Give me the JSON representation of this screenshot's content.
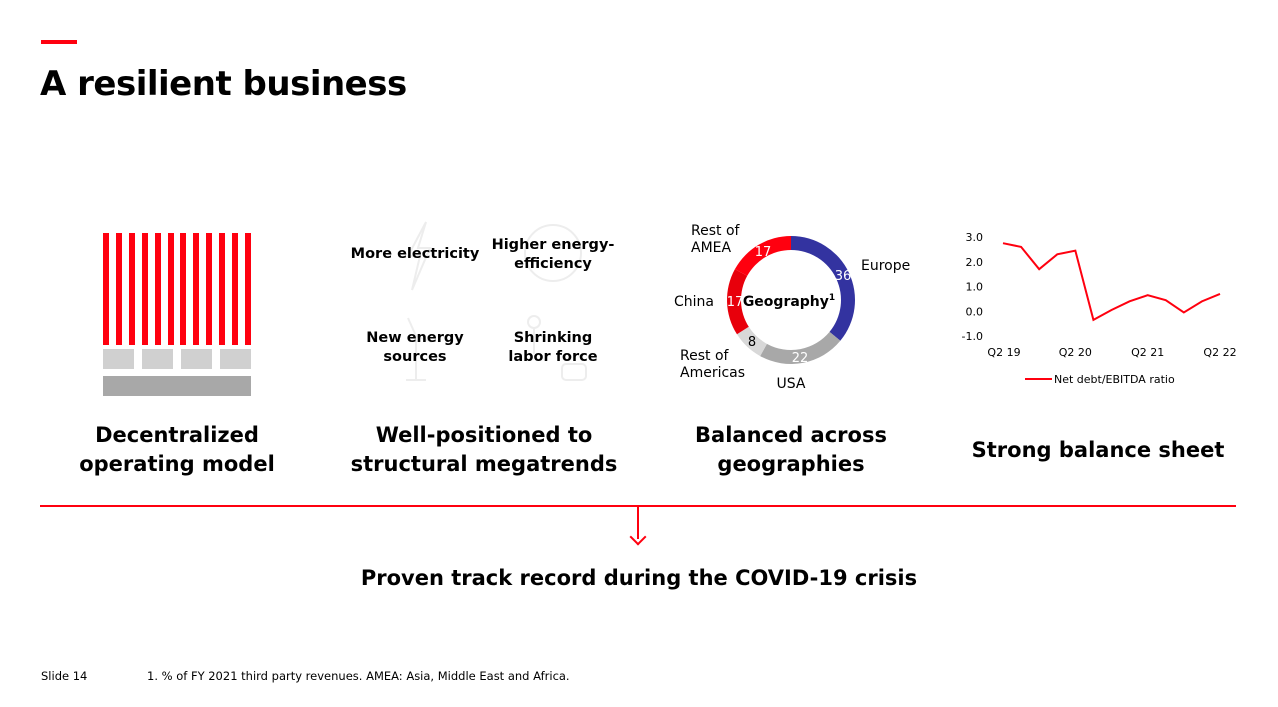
{
  "title": "A resilient business",
  "pillars": [
    {
      "label": "Decentralized\noperating model"
    },
    {
      "label": "Well-positioned to\nstructural megatrends"
    },
    {
      "label": "Balanced across\ngeographies"
    },
    {
      "label": "Strong balance sheet"
    }
  ],
  "megatrends": [
    "More electricity",
    "Higher energy-\nefficiency",
    "New energy\nsources",
    "Shrinking\nlabor force"
  ],
  "colors": {
    "accent": "#ff000f",
    "europe": "#3333a0",
    "usa": "#a8a8a8",
    "americas": "#d8d8d8",
    "china": "#e8000b",
    "amea": "#ff000f"
  },
  "chart_data": [
    {
      "type": "pie",
      "title": "Geography",
      "title_sup": "1",
      "slices": [
        {
          "label": "Europe",
          "value": 36,
          "color": "#3333a0"
        },
        {
          "label": "USA",
          "value": 22,
          "color": "#a8a8a8"
        },
        {
          "label": "Rest of\nAmericas",
          "value": 8,
          "color": "#d8d8d8"
        },
        {
          "label": "China",
          "value": 17,
          "color": "#e8000b"
        },
        {
          "label": "Rest of\nAMEA",
          "value": 17,
          "color": "#ff000f"
        }
      ]
    },
    {
      "type": "line",
      "x_ticks": [
        "Q2 19",
        "Q2 20",
        "Q2 21",
        "Q2 22"
      ],
      "y_ticks": [
        "3.0",
        "2.0",
        "1.0",
        "0.0",
        "-1.0"
      ],
      "ylim": [
        -1.0,
        3.0
      ],
      "series": [
        {
          "name": "Net debt/EBITDA ratio",
          "color": "#ff000f",
          "values": [
            2.75,
            2.6,
            1.7,
            2.3,
            2.45,
            -0.35,
            0.05,
            0.4,
            0.65,
            0.45,
            -0.05,
            0.4,
            0.7
          ]
        }
      ]
    }
  ],
  "bottom_statement": "Proven track record during the COVID-19 crisis",
  "footer": {
    "slide": "Slide 14",
    "footnote": "1. % of FY 2021 third party revenues. AMEA: Asia, Middle East and Africa."
  }
}
